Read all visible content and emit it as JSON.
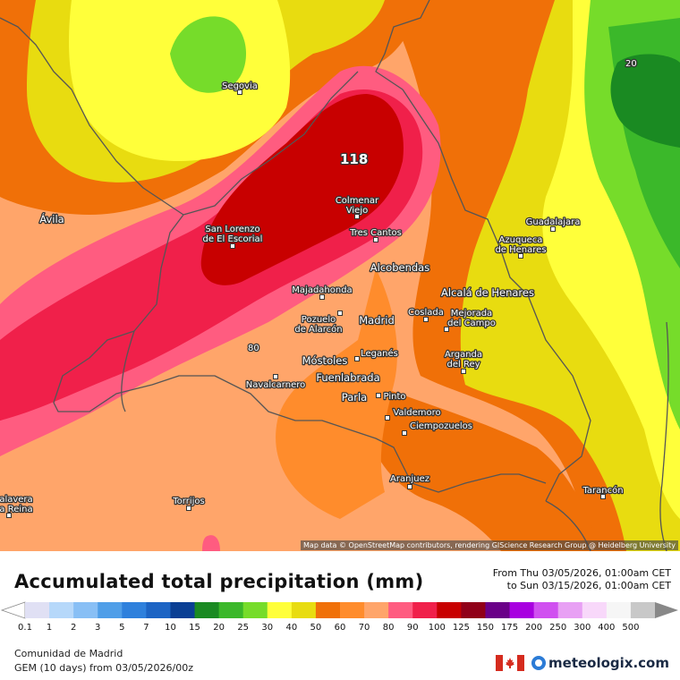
{
  "map": {
    "max_label": "118",
    "contour_label_20": "20",
    "contour_label_80": "80",
    "cities": [
      {
        "name": "Segovia"
      },
      {
        "name": "Ávila"
      },
      {
        "name": "San Lorenzo\nde El Escorial"
      },
      {
        "name": "Colmenar\nViejo"
      },
      {
        "name": "Tres Cantos"
      },
      {
        "name": "Alcobendas"
      },
      {
        "name": "Majadahonda"
      },
      {
        "name": "Pozuelo\nde Alarcón"
      },
      {
        "name": "Madrid"
      },
      {
        "name": "Coslada"
      },
      {
        "name": "Alcalá de Henares"
      },
      {
        "name": "Mejorada\ndel Campo"
      },
      {
        "name": "Guadalajara"
      },
      {
        "name": "Azuqueca\nde Henares"
      },
      {
        "name": "Leganés"
      },
      {
        "name": "Móstoles"
      },
      {
        "name": "Fuenlabrada"
      },
      {
        "name": "Navalcarnero"
      },
      {
        "name": "Parla"
      },
      {
        "name": "Pinto"
      },
      {
        "name": "Arganda\ndel Rey"
      },
      {
        "name": "Valdemoro"
      },
      {
        "name": "Ciempozuelos"
      },
      {
        "name": "Aranjuez"
      },
      {
        "name": "Torrijos"
      },
      {
        "name": "Tarancón"
      },
      {
        "name": "alavera\na Reina"
      }
    ],
    "attribution": "Map data © OpenStreetMap contributors, rendering GIScience Research Group @ Heidelberg University"
  },
  "legend": {
    "title": "Accumulated total precipitation (mm)",
    "period_from": "From Thu 03/05/2026, 01:00am CET",
    "period_to": "to Sun 03/15/2026, 01:00am CET",
    "scale_labels": [
      "0.1",
      "1",
      "2",
      "3",
      "5",
      "7",
      "10",
      "15",
      "20",
      "25",
      "30",
      "40",
      "50",
      "60",
      "70",
      "80",
      "90",
      "100",
      "125",
      "150",
      "175",
      "200",
      "250",
      "300",
      "400",
      "500"
    ],
    "scale_colors": [
      "#e0e0f4",
      "#b6d8fa",
      "#88bff5",
      "#4f9ee8",
      "#2e80dc",
      "#1c64c4",
      "#0a3f94",
      "#1a8a22",
      "#3bb82a",
      "#76dc2a",
      "#ffff3a",
      "#e8dc10",
      "#f07008",
      "#ff8c2c",
      "#ffa56a",
      "#ff5c80",
      "#f0204a",
      "#c80000",
      "#900018",
      "#6a0088",
      "#a800e0",
      "#d050f0",
      "#e8a0f4",
      "#f8d8fa",
      "#f6f6f6",
      "#c8c8c8"
    ],
    "region": "Comunidad de Madrid",
    "model": "GEM (10 days) from 03/05/2026/00z",
    "brand": "meteologix.com",
    "flag_icon": "canada-flag-icon",
    "brand_icon": "meteologix-globe-icon"
  }
}
